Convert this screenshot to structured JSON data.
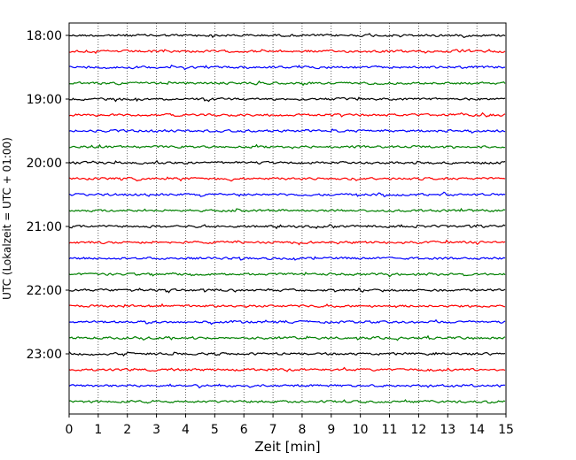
{
  "chart_data": {
    "type": "line",
    "xlabel": "Zeit  [min]",
    "ylabel": "UTC (Lokalzeit = UTC + 01:00)",
    "xlim": [
      0,
      15
    ],
    "x_ticks": [
      0,
      1,
      2,
      3,
      4,
      5,
      6,
      7,
      8,
      9,
      10,
      11,
      12,
      13,
      14,
      15
    ],
    "y_tick_labels": [
      "18:00",
      "19:00",
      "20:00",
      "21:00",
      "22:00",
      "23:00"
    ],
    "grid": "vertical dotted",
    "trace_interval_minutes": 15,
    "trace_start_times": [
      "18:00",
      "18:15",
      "18:30",
      "18:45",
      "19:00",
      "19:15",
      "19:30",
      "19:45",
      "20:00",
      "20:15",
      "20:30",
      "20:45",
      "21:00",
      "21:15",
      "21:30",
      "21:45",
      "22:00",
      "22:15",
      "22:30",
      "22:45",
      "23:00",
      "23:15",
      "23:30",
      "23:45"
    ],
    "trace_color_cycle": [
      "#000000",
      "#ff0000",
      "#0000ff",
      "#008000"
    ]
  }
}
